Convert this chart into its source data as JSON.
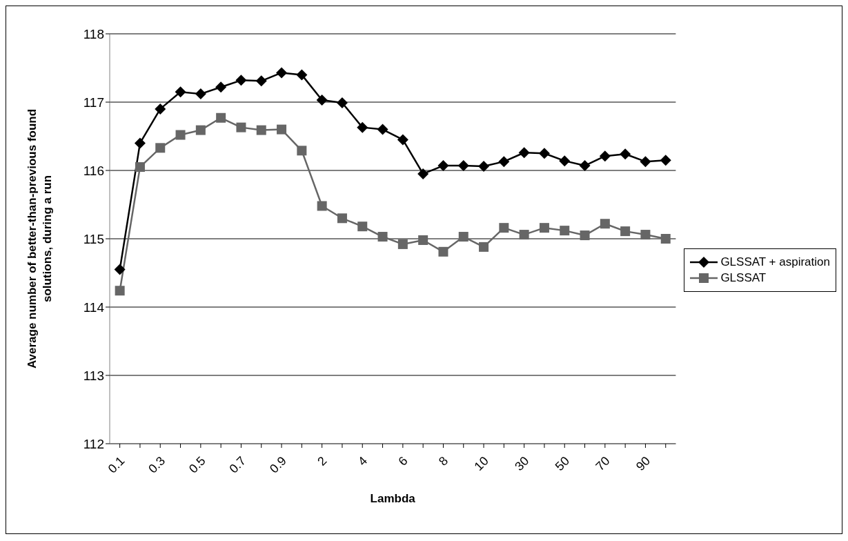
{
  "chart_data": {
    "type": "line",
    "xlabel": "Lambda",
    "ylabel": "Average number of better-than-previous found solutions, during a run",
    "categories": [
      "0.1",
      null,
      "0.3",
      null,
      "0.5",
      null,
      "0.7",
      null,
      "0.9",
      null,
      "2",
      null,
      "4",
      null,
      "6",
      null,
      "8",
      null,
      "10",
      null,
      "30",
      null,
      "50",
      null,
      "70",
      null,
      "90",
      null
    ],
    "series": [
      {
        "name": "GLSSAT + aspiration",
        "color": "#000000",
        "marker": "diamond",
        "values": [
          114.55,
          116.4,
          116.9,
          117.15,
          117.12,
          117.22,
          117.32,
          117.31,
          117.43,
          117.4,
          117.03,
          116.99,
          116.63,
          116.6,
          116.45,
          115.95,
          116.07,
          116.07,
          116.06,
          116.13,
          116.26,
          116.25,
          116.14,
          116.07,
          116.21,
          116.24,
          116.13,
          116.15
        ]
      },
      {
        "name": "GLSSAT",
        "color": "#666666",
        "marker": "square",
        "values": [
          114.24,
          116.05,
          116.33,
          116.52,
          116.59,
          116.77,
          116.63,
          116.59,
          116.6,
          116.29,
          115.48,
          115.3,
          115.18,
          115.03,
          114.92,
          114.98,
          114.81,
          115.03,
          114.88,
          115.16,
          115.06,
          115.16,
          115.12,
          115.05,
          115.22,
          115.11,
          115.06,
          115.0
        ]
      }
    ],
    "ylim": [
      112,
      118
    ],
    "yticks": [
      112,
      113,
      114,
      115,
      116,
      117,
      118
    ],
    "grid": "y",
    "legend": "right",
    "line_style": "solid"
  }
}
